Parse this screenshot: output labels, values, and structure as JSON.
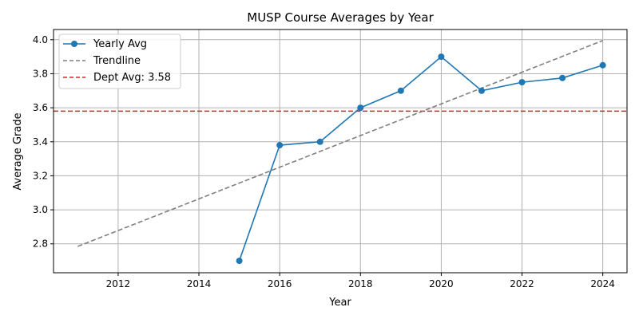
{
  "chart_data": {
    "type": "line",
    "title": "MUSP Course Averages by Year",
    "xlabel": "Year",
    "ylabel": "Average Grade",
    "xlim": [
      2010.4,
      2024.6
    ],
    "ylim": [
      2.63,
      4.06
    ],
    "xticks": [
      2012,
      2014,
      2016,
      2018,
      2020,
      2022,
      2024
    ],
    "yticks": [
      2.8,
      3.0,
      3.2,
      3.4,
      3.6,
      3.8,
      4.0
    ],
    "grid": true,
    "legend_position": "top-left",
    "series": [
      {
        "name": "Yearly Avg",
        "style": "solid-with-markers",
        "color": "#1f77b4",
        "x": [
          2015,
          2016,
          2017,
          2018,
          2019,
          2020,
          2021,
          2022,
          2023,
          2024
        ],
        "y": [
          2.7,
          3.38,
          3.4,
          3.6,
          3.7,
          3.9,
          3.7,
          3.75,
          3.775,
          3.85
        ]
      },
      {
        "name": "Trendline",
        "style": "dashed",
        "color": "#7f7f7f",
        "x": [
          2011,
          2024
        ],
        "y": [
          2.785,
          3.995
        ]
      },
      {
        "name": "Dept Avg: 3.58",
        "style": "dashed-horizontal",
        "color": "#d62728",
        "y_value": 3.58
      }
    ]
  }
}
